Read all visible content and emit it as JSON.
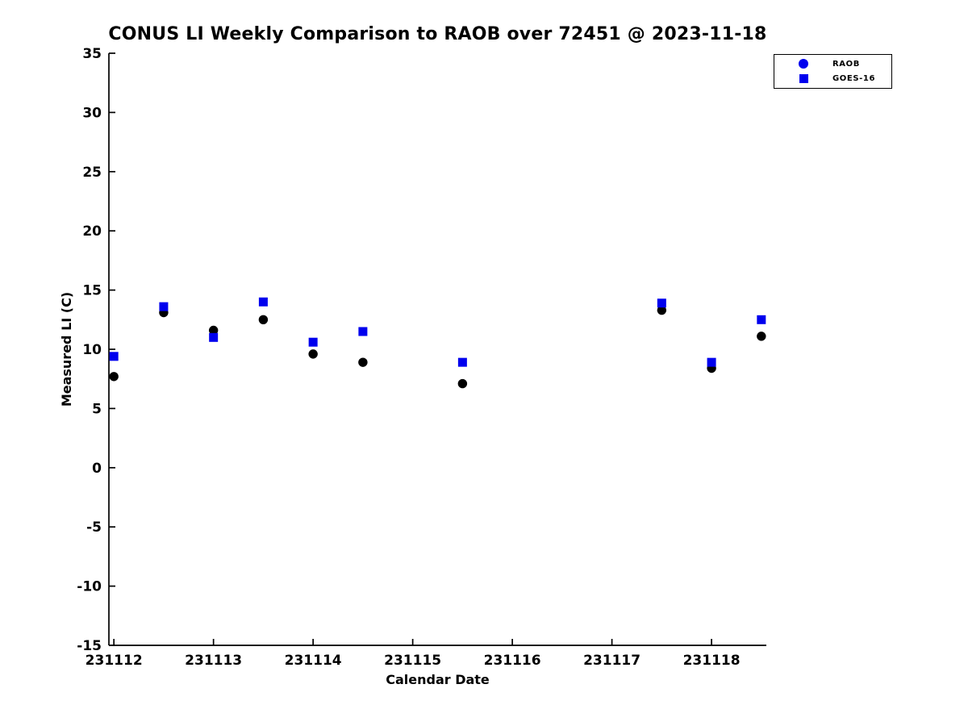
{
  "chart_data": {
    "type": "scatter",
    "title": "CONUS LI Weekly Comparison to RAOB over 72451 @ 2023-11-18",
    "xlabel": "Calendar Date",
    "ylabel": "Measured LI (C)",
    "xlim": [
      231111.95,
      231118.55
    ],
    "ylim": [
      -15,
      35
    ],
    "grid": false,
    "legend_position": "top-right",
    "xticks": {
      "values": [
        231112,
        231113,
        231114,
        231115,
        231116,
        231117,
        231118
      ],
      "labels": [
        "231112",
        "231113",
        "231114",
        "231115",
        "231116",
        "231117",
        "231118"
      ]
    },
    "yticks": {
      "values": [
        -15,
        -10,
        -5,
        0,
        5,
        10,
        15,
        20,
        25,
        30,
        35
      ],
      "labels": [
        "-15",
        "-10",
        "-5",
        "0",
        "5",
        "10",
        "15",
        "20",
        "25",
        "30",
        "35"
      ]
    },
    "x": [
      231112.0,
      231112.5,
      231113.0,
      231113.5,
      231114.0,
      231114.5,
      231115.5,
      231117.5,
      231118.0,
      231118.5
    ],
    "series": [
      {
        "name": "RAOB",
        "marker": "circle",
        "color": "#000000",
        "legend_color": "#0000EE",
        "values": [
          7.7,
          13.1,
          11.6,
          12.5,
          9.6,
          8.9,
          7.1,
          13.3,
          8.4,
          11.1
        ]
      },
      {
        "name": "GOES-16",
        "marker": "square",
        "color": "#0000EE",
        "legend_color": "#0000EE",
        "values": [
          9.4,
          13.6,
          11.0,
          14.0,
          10.6,
          11.5,
          8.9,
          13.9,
          8.9,
          12.5
        ]
      }
    ],
    "legend": {
      "items": [
        {
          "label": "RAOB"
        },
        {
          "label": "GOES-16"
        }
      ]
    }
  },
  "colors": {
    "axis": "#000000",
    "background": "#ffffff",
    "raob_marker": "#000000",
    "goes16_marker": "#0000EE"
  }
}
